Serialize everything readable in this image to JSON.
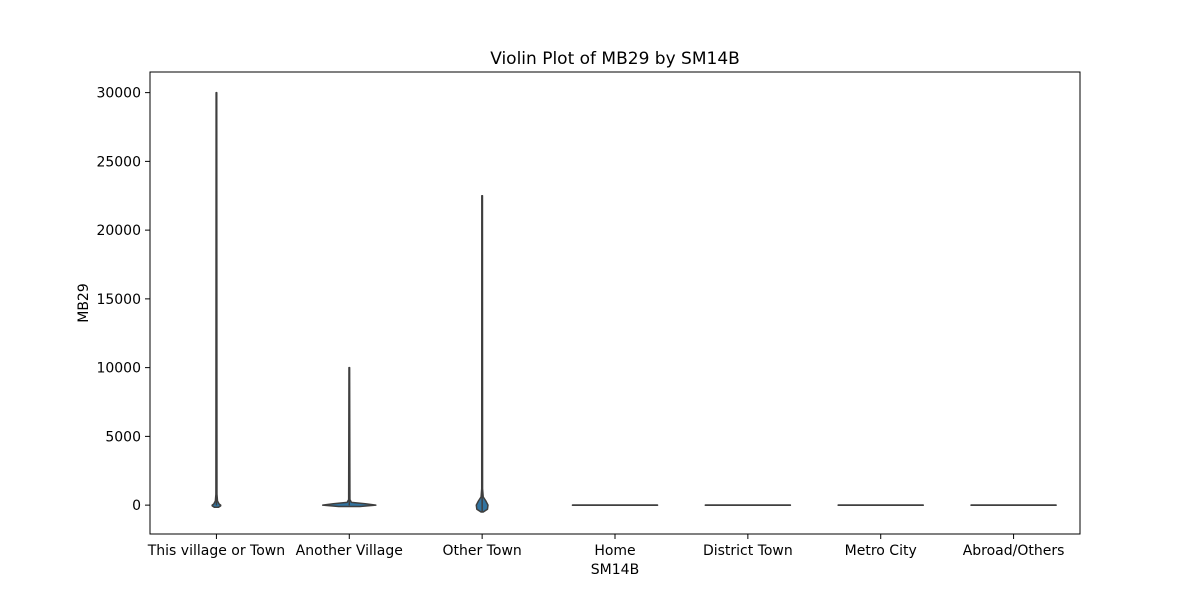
{
  "chart_data": {
    "type": "violin",
    "title": "Violin Plot of MB29 by SM14B",
    "xlabel": "SM14B",
    "ylabel": "MB29",
    "categories": [
      "This village or Town",
      "Another Village",
      "Other Town",
      "Home",
      "District Town",
      "Metro City",
      "Abroad/Others"
    ],
    "ylim": [
      -2100,
      31500
    ],
    "yticks": [
      0,
      5000,
      10000,
      15000,
      20000,
      25000,
      30000
    ],
    "ytick_labels": [
      "0",
      "5000",
      "10000",
      "15000",
      "20000",
      "25000",
      "30000"
    ],
    "grid": false,
    "legend": "none",
    "violins": [
      {
        "category": "This village or Town",
        "min": -20,
        "max": 30000,
        "profile": [
          [
            -150,
            0.04
          ],
          [
            -50,
            0.08
          ],
          [
            0,
            0.08
          ],
          [
            80,
            0.05
          ],
          [
            300,
            0.02
          ],
          [
            800,
            0.01
          ],
          [
            30000,
            0.006
          ]
        ]
      },
      {
        "category": "Another Village",
        "min": -20,
        "max": 10000,
        "profile": [
          [
            -100,
            0.2
          ],
          [
            0,
            0.5
          ],
          [
            100,
            0.3
          ],
          [
            200,
            0.04
          ],
          [
            400,
            0.012
          ],
          [
            10000,
            0.006
          ]
        ]
      },
      {
        "category": "Other Town",
        "min": -500,
        "max": 22500,
        "profile": [
          [
            -500,
            0.02
          ],
          [
            -300,
            0.1
          ],
          [
            0,
            0.11
          ],
          [
            300,
            0.07
          ],
          [
            600,
            0.02
          ],
          [
            1200,
            0.008
          ],
          [
            22500,
            0.006
          ]
        ]
      },
      {
        "category": "Home",
        "min": 0,
        "max": 0,
        "profile": [
          [
            -8,
            0.8
          ],
          [
            8,
            0.8
          ]
        ]
      },
      {
        "category": "District Town",
        "min": 0,
        "max": 0,
        "profile": [
          [
            -8,
            0.8
          ],
          [
            8,
            0.8
          ]
        ]
      },
      {
        "category": "Metro City",
        "min": 0,
        "max": 0,
        "profile": [
          [
            -8,
            0.8
          ],
          [
            8,
            0.8
          ]
        ]
      },
      {
        "category": "Abroad/Others",
        "min": 0,
        "max": 0,
        "profile": [
          [
            -8,
            0.8
          ],
          [
            8,
            0.8
          ]
        ]
      }
    ],
    "colors": {
      "fill": "#3274a1",
      "edge": "#3f3f3f",
      "axis": "#000000"
    }
  }
}
